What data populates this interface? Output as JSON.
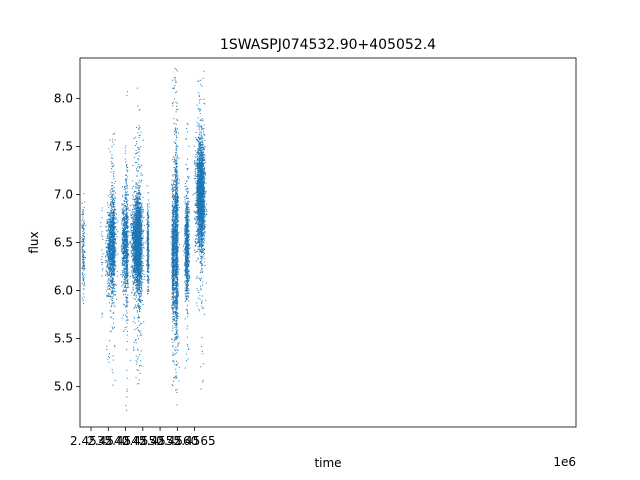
{
  "chart_data": {
    "type": "scatter",
    "title": "1SWASPJ074532.90+405052.4",
    "xlabel": "time",
    "ylabel": "flux",
    "x_offset_label": "1e6",
    "x_unit_scale": 1000000,
    "xlim": [
      2453180,
      2467550
    ],
    "ylim": [
      4.58,
      8.42
    ],
    "x_ticks": [
      2.4535,
      2.454,
      2.4545,
      2.455,
      2.4555,
      2.456,
      2.4565
    ],
    "x_tick_labels": [
      "2.4535",
      "2.4540",
      "2.4545",
      "2.4550",
      "2.4555",
      "2.4560",
      "2.4565"
    ],
    "y_ticks": [
      5.0,
      5.5,
      6.0,
      6.5,
      7.0,
      7.5,
      8.0
    ],
    "y_tick_labels": [
      "5.0",
      "5.5",
      "6.0",
      "6.5",
      "7.0",
      "7.5",
      "8.0"
    ],
    "grid": false,
    "point_color": "#1f77b4",
    "clusters": [
      {
        "x_center": 2453280,
        "x_spread": 25,
        "y_center": 6.45,
        "y_spread": 0.28,
        "y_min": 5.8,
        "y_max": 7.08,
        "n": 160
      },
      {
        "x_center": 2453820,
        "x_spread": 15,
        "y_center": 6.3,
        "y_spread": 0.35,
        "y_min": 5.65,
        "y_max": 7.2,
        "n": 20
      },
      {
        "x_center": 2454080,
        "x_spread": 65,
        "y_center": 6.45,
        "y_spread": 0.22,
        "y_min": 5.1,
        "y_max": 7.8,
        "n": 900
      },
      {
        "x_center": 2454145,
        "x_spread": 30,
        "y_center": 6.5,
        "y_spread": 0.3,
        "y_min": 5.0,
        "y_max": 7.65,
        "n": 450
      },
      {
        "x_center": 2454450,
        "x_spread": 30,
        "y_center": 6.5,
        "y_spread": 0.2,
        "y_min": 5.5,
        "y_max": 7.1,
        "n": 350
      },
      {
        "x_center": 2454530,
        "x_spread": 25,
        "y_center": 6.45,
        "y_spread": 0.35,
        "y_min": 4.75,
        "y_max": 8.22,
        "n": 550
      },
      {
        "x_center": 2454840,
        "x_spread": 70,
        "y_center": 6.5,
        "y_spread": 0.22,
        "y_min": 4.98,
        "y_max": 7.7,
        "n": 2400
      },
      {
        "x_center": 2454900,
        "x_spread": 35,
        "y_center": 6.5,
        "y_spread": 0.3,
        "y_min": 5.2,
        "y_max": 8.15,
        "n": 600
      },
      {
        "x_center": 2455150,
        "x_spread": 15,
        "y_center": 6.45,
        "y_spread": 0.2,
        "y_min": 5.95,
        "y_max": 7.15,
        "n": 300
      },
      {
        "x_center": 2455880,
        "x_spread": 20,
        "y_center": 6.4,
        "y_spread": 0.32,
        "y_min": 4.95,
        "y_max": 8.22,
        "n": 700
      },
      {
        "x_center": 2455970,
        "x_spread": 28,
        "y_center": 6.5,
        "y_spread": 0.5,
        "y_min": 4.78,
        "y_max": 8.32,
        "n": 1300
      },
      {
        "x_center": 2456280,
        "x_spread": 30,
        "y_center": 6.45,
        "y_spread": 0.25,
        "y_min": 5.15,
        "y_max": 7.75,
        "n": 900
      },
      {
        "x_center": 2456650,
        "x_spread": 55,
        "y_center": 7.0,
        "y_spread": 0.28,
        "y_min": 5.65,
        "y_max": 8.3,
        "n": 1600
      },
      {
        "x_center": 2456730,
        "x_spread": 40,
        "y_center": 6.95,
        "y_spread": 0.3,
        "y_min": 4.88,
        "y_max": 8.3,
        "n": 800
      }
    ]
  }
}
